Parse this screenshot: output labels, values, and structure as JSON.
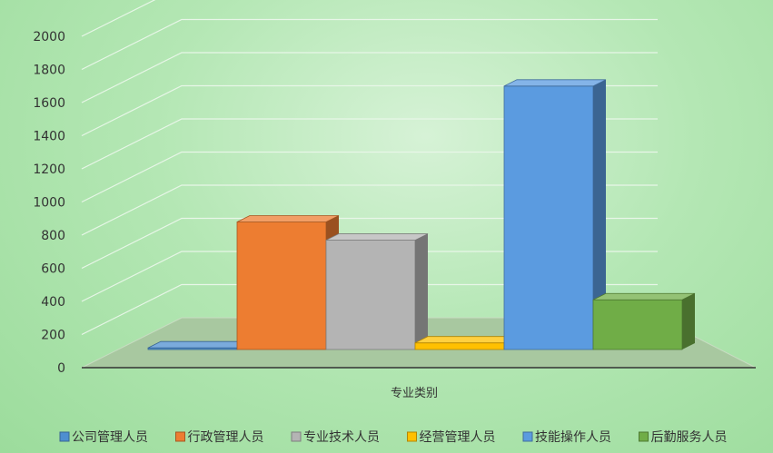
{
  "chart_data": {
    "type": "bar",
    "style": "3d-clustered",
    "xlabel": "专业类别",
    "ylabel": "",
    "ylim": [
      0,
      2000
    ],
    "yticks": [
      0,
      200,
      400,
      600,
      800,
      1000,
      1200,
      1400,
      1600,
      1800,
      2000
    ],
    "grid": true,
    "legend_position": "bottom",
    "series": [
      {
        "name": "公司管理人员",
        "value": 10,
        "color": "#4e8fd0"
      },
      {
        "name": "行政管理人员",
        "value": 770,
        "color": "#ed7d31"
      },
      {
        "name": "专业技术人员",
        "value": 660,
        "color": "#b4b4b4"
      },
      {
        "name": "经营管理人员",
        "value": 40,
        "color": "#ffc000"
      },
      {
        "name": "技能操作人员",
        "value": 1590,
        "color": "#5b9be0"
      },
      {
        "name": "后勤服务人员",
        "value": 300,
        "color": "#70ad47"
      }
    ]
  }
}
